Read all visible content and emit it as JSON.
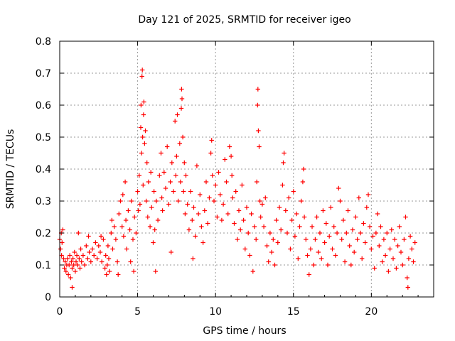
{
  "chart_data": {
    "type": "scatter",
    "title": "Day 121 of 2025, SRMTID for receiver igeo",
    "xlabel": "GPS time / hours",
    "ylabel": "SRMTID / TECUs",
    "xlim": [
      0,
      24
    ],
    "ylim": [
      0,
      0.8
    ],
    "x_ticks": [
      0,
      5,
      10,
      15,
      20
    ],
    "x_tick_labels": [
      "0",
      "5",
      "10",
      "15",
      "20"
    ],
    "y_ticks": [
      0,
      0.1,
      0.2,
      0.3,
      0.4,
      0.5,
      0.6,
      0.7,
      0.8
    ],
    "y_tick_labels": [
      "0",
      "0.1",
      "0.2",
      "0.3",
      "0.4",
      "0.5",
      "0.6",
      "0.7",
      "0.8"
    ],
    "grid": true,
    "marker": "+",
    "marker_color": "#ff0000",
    "frame_color": "#000000",
    "grid_color": "#9a9a9a",
    "series": [
      {
        "name": "SRMTID",
        "points": [
          [
            0.0,
            0.18
          ],
          [
            0.05,
            0.15
          ],
          [
            0.1,
            0.2
          ],
          [
            0.12,
            0.13
          ],
          [
            0.15,
            0.17
          ],
          [
            0.2,
            0.21
          ],
          [
            0.25,
            0.12
          ],
          [
            0.3,
            0.09
          ],
          [
            0.35,
            0.11
          ],
          [
            0.4,
            0.08
          ],
          [
            0.45,
            0.1
          ],
          [
            0.5,
            0.12
          ],
          [
            0.55,
            0.07
          ],
          [
            0.6,
            0.1
          ],
          [
            0.65,
            0.13
          ],
          [
            0.7,
            0.06
          ],
          [
            0.75,
            0.11
          ],
          [
            0.8,
            0.09
          ],
          [
            0.8,
            0.03
          ],
          [
            0.85,
            0.12
          ],
          [
            0.9,
            0.1
          ],
          [
            0.95,
            0.14
          ],
          [
            1.0,
            0.08
          ],
          [
            1.05,
            0.11
          ],
          [
            1.1,
            0.13
          ],
          [
            1.15,
            0.1
          ],
          [
            1.2,
            0.2
          ],
          [
            1.25,
            0.12
          ],
          [
            1.3,
            0.09
          ],
          [
            1.35,
            0.15
          ],
          [
            1.4,
            0.11
          ],
          [
            1.5,
            0.13
          ],
          [
            1.6,
            0.1
          ],
          [
            1.7,
            0.16
          ],
          [
            1.8,
            0.12
          ],
          [
            1.85,
            0.19
          ],
          [
            1.9,
            0.14
          ],
          [
            2.0,
            0.11
          ],
          [
            2.1,
            0.15
          ],
          [
            2.2,
            0.13
          ],
          [
            2.3,
            0.17
          ],
          [
            2.4,
            0.12
          ],
          [
            2.5,
            0.16
          ],
          [
            2.6,
            0.14
          ],
          [
            2.65,
            0.19
          ],
          [
            2.7,
            0.11
          ],
          [
            2.8,
            0.18
          ],
          [
            2.9,
            0.09
          ],
          [
            2.95,
            0.13
          ],
          [
            3.0,
            0.07
          ],
          [
            3.05,
            0.1
          ],
          [
            3.1,
            0.16
          ],
          [
            3.15,
            0.12
          ],
          [
            3.2,
            0.08
          ],
          [
            3.3,
            0.2
          ],
          [
            3.35,
            0.24
          ],
          [
            3.4,
            0.15
          ],
          [
            3.5,
            0.22
          ],
          [
            3.6,
            0.18
          ],
          [
            3.7,
            0.11
          ],
          [
            3.75,
            0.07
          ],
          [
            3.8,
            0.26
          ],
          [
            3.9,
            0.3
          ],
          [
            4.0,
            0.22
          ],
          [
            4.05,
            0.32
          ],
          [
            4.1,
            0.19
          ],
          [
            4.2,
            0.36
          ],
          [
            4.25,
            0.24
          ],
          [
            4.3,
            0.15
          ],
          [
            4.4,
            0.27
          ],
          [
            4.5,
            0.21
          ],
          [
            4.55,
            0.11
          ],
          [
            4.6,
            0.3
          ],
          [
            4.7,
            0.18
          ],
          [
            4.75,
            0.08
          ],
          [
            4.8,
            0.25
          ],
          [
            4.9,
            0.2
          ],
          [
            5.0,
            0.33
          ],
          [
            5.05,
            0.27
          ],
          [
            5.1,
            0.38
          ],
          [
            5.15,
            0.29
          ],
          [
            5.2,
            0.53
          ],
          [
            5.22,
            0.6
          ],
          [
            5.25,
            0.45
          ],
          [
            5.28,
            0.69
          ],
          [
            5.3,
            0.71
          ],
          [
            5.32,
            0.5
          ],
          [
            5.35,
            0.35
          ],
          [
            5.38,
            0.57
          ],
          [
            5.4,
            0.61
          ],
          [
            5.45,
            0.48
          ],
          [
            5.5,
            0.52
          ],
          [
            5.55,
            0.3
          ],
          [
            5.6,
            0.42
          ],
          [
            5.65,
            0.25
          ],
          [
            5.7,
            0.36
          ],
          [
            5.8,
            0.22
          ],
          [
            5.85,
            0.39
          ],
          [
            5.9,
            0.28
          ],
          [
            6.0,
            0.17
          ],
          [
            6.05,
            0.33
          ],
          [
            6.1,
            0.21
          ],
          [
            6.15,
            0.08
          ],
          [
            6.2,
            0.3
          ],
          [
            6.3,
            0.24
          ],
          [
            6.4,
            0.38
          ],
          [
            6.5,
            0.45
          ],
          [
            6.55,
            0.31
          ],
          [
            6.6,
            0.27
          ],
          [
            6.7,
            0.39
          ],
          [
            6.8,
            0.34
          ],
          [
            6.9,
            0.47
          ],
          [
            7.0,
            0.29
          ],
          [
            7.1,
            0.36
          ],
          [
            7.15,
            0.14
          ],
          [
            7.2,
            0.42
          ],
          [
            7.3,
            0.33
          ],
          [
            7.4,
            0.55
          ],
          [
            7.45,
            0.38
          ],
          [
            7.5,
            0.44
          ],
          [
            7.55,
            0.57
          ],
          [
            7.6,
            0.3
          ],
          [
            7.7,
            0.48
          ],
          [
            7.75,
            0.36
          ],
          [
            7.8,
            0.59
          ],
          [
            7.82,
            0.65
          ],
          [
            7.85,
            0.62
          ],
          [
            7.9,
            0.5
          ],
          [
            7.95,
            0.33
          ],
          [
            8.0,
            0.42
          ],
          [
            8.05,
            0.26
          ],
          [
            8.1,
            0.38
          ],
          [
            8.2,
            0.29
          ],
          [
            8.3,
            0.21
          ],
          [
            8.4,
            0.33
          ],
          [
            8.5,
            0.24
          ],
          [
            8.55,
            0.12
          ],
          [
            8.6,
            0.28
          ],
          [
            8.7,
            0.19
          ],
          [
            8.8,
            0.41
          ],
          [
            8.9,
            0.26
          ],
          [
            9.0,
            0.32
          ],
          [
            9.1,
            0.22
          ],
          [
            9.2,
            0.17
          ],
          [
            9.3,
            0.27
          ],
          [
            9.4,
            0.36
          ],
          [
            9.5,
            0.23
          ],
          [
            9.6,
            0.31
          ],
          [
            9.7,
            0.45
          ],
          [
            9.75,
            0.49
          ],
          [
            9.8,
            0.38
          ],
          [
            9.9,
            0.3
          ],
          [
            10.0,
            0.35
          ],
          [
            10.1,
            0.25
          ],
          [
            10.2,
            0.39
          ],
          [
            10.3,
            0.32
          ],
          [
            10.4,
            0.24
          ],
          [
            10.5,
            0.29
          ],
          [
            10.6,
            0.43
          ],
          [
            10.7,
            0.36
          ],
          [
            10.8,
            0.26
          ],
          [
            10.9,
            0.47
          ],
          [
            11.0,
            0.44
          ],
          [
            11.05,
            0.38
          ],
          [
            11.1,
            0.31
          ],
          [
            11.2,
            0.23
          ],
          [
            11.3,
            0.33
          ],
          [
            11.4,
            0.18
          ],
          [
            11.5,
            0.27
          ],
          [
            11.6,
            0.21
          ],
          [
            11.7,
            0.35
          ],
          [
            11.8,
            0.24
          ],
          [
            11.9,
            0.15
          ],
          [
            12.0,
            0.28
          ],
          [
            12.1,
            0.2
          ],
          [
            12.2,
            0.13
          ],
          [
            12.3,
            0.26
          ],
          [
            12.4,
            0.08
          ],
          [
            12.5,
            0.22
          ],
          [
            12.6,
            0.18
          ],
          [
            12.65,
            0.36
          ],
          [
            12.7,
            0.6
          ],
          [
            12.72,
            0.65
          ],
          [
            12.75,
            0.52
          ],
          [
            12.8,
            0.47
          ],
          [
            12.85,
            0.3
          ],
          [
            12.9,
            0.25
          ],
          [
            13.0,
            0.29
          ],
          [
            13.1,
            0.22
          ],
          [
            13.2,
            0.31
          ],
          [
            13.3,
            0.16
          ],
          [
            13.4,
            0.11
          ],
          [
            13.5,
            0.2
          ],
          [
            13.6,
            0.14
          ],
          [
            13.7,
            0.18
          ],
          [
            13.8,
            0.1
          ],
          [
            13.9,
            0.24
          ],
          [
            14.0,
            0.17
          ],
          [
            14.1,
            0.28
          ],
          [
            14.2,
            0.21
          ],
          [
            14.3,
            0.35
          ],
          [
            14.35,
            0.42
          ],
          [
            14.4,
            0.45
          ],
          [
            14.5,
            0.27
          ],
          [
            14.6,
            0.2
          ],
          [
            14.7,
            0.31
          ],
          [
            14.8,
            0.15
          ],
          [
            14.9,
            0.24
          ],
          [
            15.0,
            0.33
          ],
          [
            15.1,
            0.19
          ],
          [
            15.2,
            0.26
          ],
          [
            15.3,
            0.12
          ],
          [
            15.4,
            0.22
          ],
          [
            15.5,
            0.3
          ],
          [
            15.6,
            0.36
          ],
          [
            15.65,
            0.4
          ],
          [
            15.7,
            0.25
          ],
          [
            15.8,
            0.18
          ],
          [
            15.9,
            0.13
          ],
          [
            16.0,
            0.07
          ],
          [
            16.1,
            0.15
          ],
          [
            16.2,
            0.22
          ],
          [
            16.3,
            0.1
          ],
          [
            16.4,
            0.18
          ],
          [
            16.5,
            0.25
          ],
          [
            16.6,
            0.14
          ],
          [
            16.7,
            0.2
          ],
          [
            16.8,
            0.12
          ],
          [
            16.9,
            0.27
          ],
          [
            17.0,
            0.17
          ],
          [
            17.1,
            0.23
          ],
          [
            17.2,
            0.1
          ],
          [
            17.3,
            0.19
          ],
          [
            17.4,
            0.28
          ],
          [
            17.5,
            0.15
          ],
          [
            17.6,
            0.22
          ],
          [
            17.7,
            0.13
          ],
          [
            17.8,
            0.2
          ],
          [
            17.9,
            0.34
          ],
          [
            18.0,
            0.3
          ],
          [
            18.1,
            0.18
          ],
          [
            18.2,
            0.24
          ],
          [
            18.3,
            0.11
          ],
          [
            18.4,
            0.2
          ],
          [
            18.5,
            0.27
          ],
          [
            18.6,
            0.16
          ],
          [
            18.7,
            0.1
          ],
          [
            18.8,
            0.21
          ],
          [
            18.9,
            0.14
          ],
          [
            19.0,
            0.25
          ],
          [
            19.1,
            0.18
          ],
          [
            19.2,
            0.31
          ],
          [
            19.3,
            0.2
          ],
          [
            19.4,
            0.12
          ],
          [
            19.5,
            0.23
          ],
          [
            19.6,
            0.17
          ],
          [
            19.7,
            0.28
          ],
          [
            19.8,
            0.32
          ],
          [
            19.9,
            0.22
          ],
          [
            20.0,
            0.15
          ],
          [
            20.1,
            0.19
          ],
          [
            20.2,
            0.09
          ],
          [
            20.3,
            0.2
          ],
          [
            20.4,
            0.26
          ],
          [
            20.5,
            0.16
          ],
          [
            20.6,
            0.22
          ],
          [
            20.7,
            0.11
          ],
          [
            20.8,
            0.18
          ],
          [
            20.9,
            0.13
          ],
          [
            21.0,
            0.2
          ],
          [
            21.1,
            0.08
          ],
          [
            21.2,
            0.15
          ],
          [
            21.3,
            0.21
          ],
          [
            21.4,
            0.12
          ],
          [
            21.5,
            0.18
          ],
          [
            21.6,
            0.09
          ],
          [
            21.7,
            0.16
          ],
          [
            21.8,
            0.22
          ],
          [
            21.9,
            0.14
          ],
          [
            22.0,
            0.1
          ],
          [
            22.1,
            0.18
          ],
          [
            22.2,
            0.25
          ],
          [
            22.3,
            0.06
          ],
          [
            22.35,
            0.03
          ],
          [
            22.4,
            0.12
          ],
          [
            22.5,
            0.19
          ],
          [
            22.6,
            0.15
          ],
          [
            22.7,
            0.11
          ],
          [
            22.8,
            0.17
          ]
        ]
      }
    ]
  }
}
